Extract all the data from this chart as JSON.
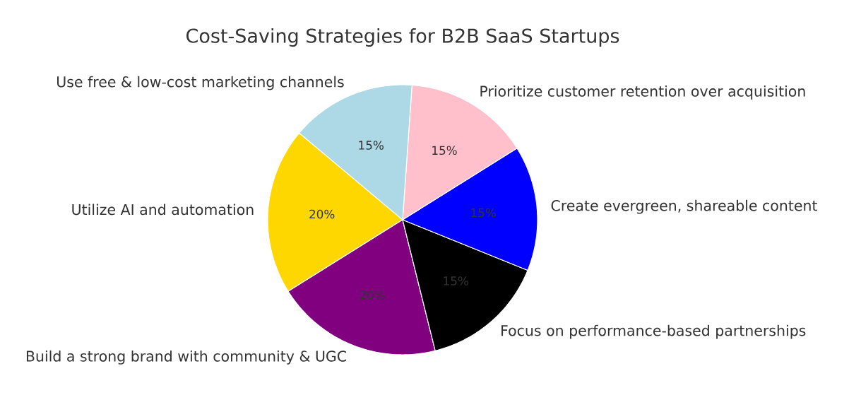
{
  "chart_data": {
    "type": "pie",
    "title": "Cost-Saving Strategies for B2B SaaS Startups",
    "categories": [
      "Utilize AI and automation",
      "Build a strong brand with community & UGC",
      "Focus on performance-based partnerships",
      "Create evergreen, shareable content",
      "Prioritize customer retention over acquisition",
      "Use free & low-cost marketing channels"
    ],
    "values": [
      20,
      20,
      15,
      15,
      15,
      15
    ],
    "colors": [
      "#ffd700",
      "#800080",
      "#000000",
      "#0000ff",
      "#ffc0cb",
      "#add8e6"
    ],
    "value_labels": [
      "20%",
      "20%",
      "15%",
      "15%",
      "15%",
      "15%"
    ]
  }
}
